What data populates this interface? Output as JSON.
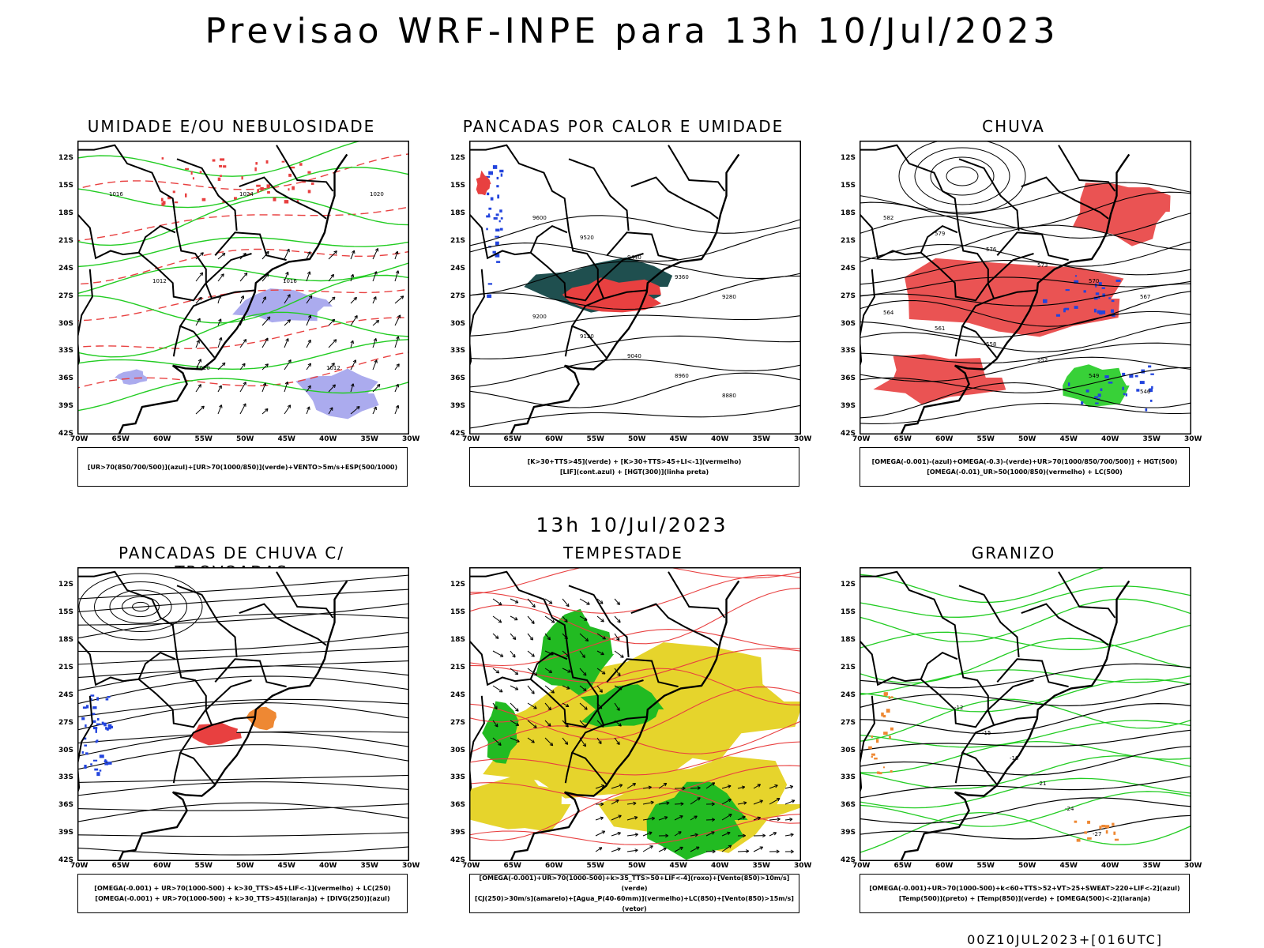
{
  "page": {
    "title": "Previsao WRF-INPE  para 13h 10/Jul/2023",
    "mid_title": "13h 10/Jul/2023",
    "footer": "00Z10JUL2023+[016UTC]"
  },
  "axes": {
    "lat_labels": [
      "12S",
      "15S",
      "18S",
      "21S",
      "24S",
      "27S",
      "30S",
      "33S",
      "36S",
      "39S",
      "42S"
    ],
    "lon_labels": [
      "70W",
      "65W",
      "60W",
      "55W",
      "50W",
      "45W",
      "40W",
      "35W",
      "30W"
    ]
  },
  "panels": [
    {
      "title": "UMIDADE E/OU NEBULOSIDADE",
      "legend": [
        "[UR>70(850/700/500)](azul)+[UR>70(1000/850)](verde)+VENTO>5m/s+ESP(500/1000)"
      ],
      "colors": {
        "fill_a": "#8f8fe8",
        "line_a": "#22cc22",
        "line_b": "#e84040"
      }
    },
    {
      "title": "PANCADAS POR CALOR E UMIDADE",
      "legend": [
        "[K>30+TTS>45](verde) + [K>30+TTS>45+LI<-1](vermelho)",
        "[LIF](cont.azul) + [HGT(300)](linha preta)"
      ],
      "colors": {
        "fill_a": "#1f4f4f",
        "fill_b": "#e84040",
        "line_a": "#2244dd"
      }
    },
    {
      "title": "CHUVA",
      "legend": [
        "[OMEGA(-0.001)-(azul)+OMEGA(-0.3)-(verde)+UR>70(1000/850/700/500)] + HGT(500)",
        "[OMEGA(-0.01)_UR>50(1000/850)(vermelho) + LC(500)"
      ],
      "colors": {
        "fill_a": "#e84040",
        "fill_b": "#22cc22",
        "fill_c": "#2244dd"
      }
    },
    {
      "title": "PANCADAS DE CHUVA C/ TROVOADAS",
      "legend": [
        "[OMEGA(-0.001) + UR>70(1000-500) + k>30_TTS>45+LIF<-1](vermelho) + LC(250)",
        "[OMEGA(-0.001) + UR>70(1000-500) + k>30_TTS>45](laranja) + [DIVG(250)](azul)"
      ],
      "colors": {
        "fill_a": "#e84040",
        "fill_b": "#ee8833",
        "fill_c": "#2244dd"
      }
    },
    {
      "title": "TEMPESTADE",
      "legend": [
        "[OMEGA(-0.001)+UR>70(1000-500)+k>35_TTS>50+LIF<-4](roxo)+[Vento(850)>10m/s](verde)",
        "[CJ(250)>30m/s](amarelo)+[Agua_P(40-60mm)](vermelho)+LC(850)+[Vento(850)>15m/s](vetor)"
      ],
      "colors": {
        "fill_a": "#e6d42c",
        "fill_b": "#22bb22",
        "line_a": "#e84040"
      }
    },
    {
      "title": "GRANIZO",
      "legend": [
        "[OMEGA(-0.001)+UR>70(1000-500)+k<60+TTS>52+VT>25+SWEAT>220+LIF<-2](azul)",
        "[Temp(500)](preto) + [Temp(850)](verde) + [OMEGA(500)<-2](laranja)"
      ],
      "colors": {
        "line_a": "#22cc22",
        "fill_a": "#ee8833"
      }
    }
  ]
}
